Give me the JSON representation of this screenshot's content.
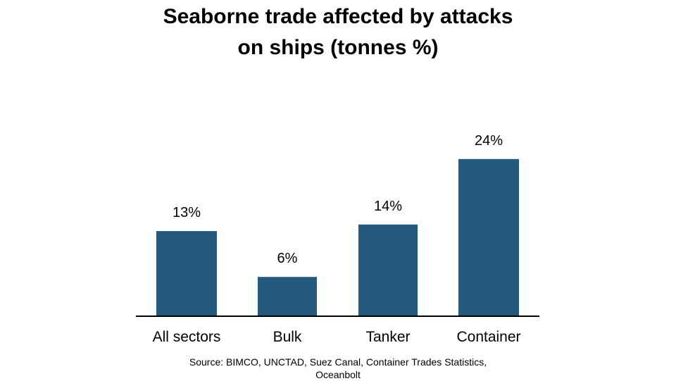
{
  "chart_data": {
    "type": "bar",
    "title_lines": [
      "Seaborne trade affected by attacks",
      "on ships (tonnes %)"
    ],
    "categories": [
      "All sectors",
      "Bulk",
      "Tanker",
      "Container"
    ],
    "values": [
      13,
      6,
      14,
      24
    ],
    "data_labels": [
      "13%",
      "6%",
      "14%",
      "24%"
    ],
    "xlabel": "",
    "ylabel": "",
    "ylim": [
      0,
      25
    ],
    "grid": false,
    "legend": "none",
    "bar_color": "#245a7e",
    "axis_color": "#000000"
  },
  "source_lines": [
    "Source: BIMCO, UNCTAD, Suez Canal, Container Trades Statistics,",
    "Oceanbolt"
  ]
}
